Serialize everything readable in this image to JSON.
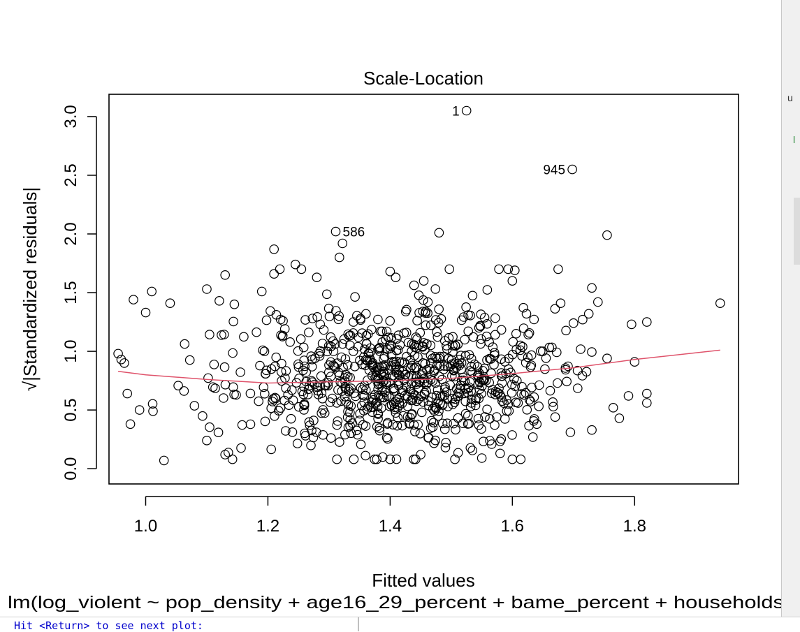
{
  "window": {
    "console_prompt": "Hit <Return> to see next plot:",
    "bg_fragment_1": "u",
    "bg_fragment_2": "l"
  },
  "chart_data": {
    "type": "scatter",
    "title": "Scale-Location",
    "xlabel": "Fitted values",
    "ylabel": "√|Standardized residuals|",
    "subtitle": "lm(log_violent ~ pop_density + age16_29_percent + bame_percent + households",
    "xlim": [
      0.94,
      1.97
    ],
    "ylim": [
      -0.13,
      3.19
    ],
    "x_ticks": [
      1.0,
      1.2,
      1.4,
      1.6,
      1.8
    ],
    "x_tick_labels": [
      "1.0",
      "1.2",
      "1.4",
      "1.6",
      "1.8"
    ],
    "y_ticks": [
      0.0,
      0.5,
      1.0,
      1.5,
      2.0,
      2.5,
      3.0
    ],
    "y_tick_labels": [
      "0.0",
      "0.5",
      "1.0",
      "1.5",
      "2.0",
      "2.5",
      "3.0"
    ],
    "grid": false,
    "point_color": "#000000",
    "smooth_color": "#df536b",
    "labeled_points": [
      {
        "label": "1",
        "x": 1.525,
        "y": 3.05
      },
      {
        "label": "945",
        "x": 1.698,
        "y": 2.55
      },
      {
        "label": "586",
        "x": 1.311,
        "y": 2.02
      }
    ],
    "outlier_points": [
      {
        "x": 1.322,
        "y": 1.92
      },
      {
        "x": 1.48,
        "y": 2.01
      },
      {
        "x": 1.755,
        "y": 1.99
      },
      {
        "x": 1.21,
        "y": 1.87
      },
      {
        "x": 1.317,
        "y": 1.8
      },
      {
        "x": 1.245,
        "y": 1.74
      },
      {
        "x": 1.675,
        "y": 1.7
      },
      {
        "x": 1.497,
        "y": 1.7
      },
      {
        "x": 1.604,
        "y": 1.69
      },
      {
        "x": 1.4,
        "y": 1.68
      },
      {
        "x": 1.13,
        "y": 1.65
      },
      {
        "x": 1.21,
        "y": 1.66
      },
      {
        "x": 1.28,
        "y": 1.63
      },
      {
        "x": 1.409,
        "y": 1.63
      },
      {
        "x": 1.6,
        "y": 1.6
      },
      {
        "x": 1.455,
        "y": 1.6
      },
      {
        "x": 1.94,
        "y": 1.41
      },
      {
        "x": 1.795,
        "y": 1.23
      },
      {
        "x": 1.82,
        "y": 1.25
      },
      {
        "x": 1.73,
        "y": 1.54
      },
      {
        "x": 1.74,
        "y": 1.42
      },
      {
        "x": 1.679,
        "y": 1.41
      },
      {
        "x": 1.0,
        "y": 1.33
      },
      {
        "x": 0.98,
        "y": 1.44
      },
      {
        "x": 1.01,
        "y": 1.51
      },
      {
        "x": 1.04,
        "y": 1.41
      },
      {
        "x": 1.1,
        "y": 1.53
      },
      {
        "x": 1.19,
        "y": 1.51
      },
      {
        "x": 1.03,
        "y": 0.07
      },
      {
        "x": 0.975,
        "y": 0.38
      },
      {
        "x": 1.6,
        "y": 0.08
      },
      {
        "x": 1.8,
        "y": 0.91
      },
      {
        "x": 1.82,
        "y": 0.64
      },
      {
        "x": 1.82,
        "y": 0.56
      },
      {
        "x": 1.765,
        "y": 0.52
      },
      {
        "x": 1.775,
        "y": 0.43
      },
      {
        "x": 1.79,
        "y": 0.62
      },
      {
        "x": 1.755,
        "y": 0.94
      },
      {
        "x": 1.73,
        "y": 0.33
      },
      {
        "x": 1.695,
        "y": 0.31
      },
      {
        "x": 1.7,
        "y": 1.24
      },
      {
        "x": 1.715,
        "y": 1.27
      },
      {
        "x": 1.725,
        "y": 1.32
      },
      {
        "x": 0.955,
        "y": 0.98
      },
      {
        "x": 0.96,
        "y": 0.93
      },
      {
        "x": 0.965,
        "y": 0.9
      },
      {
        "x": 0.97,
        "y": 0.64
      },
      {
        "x": 0.99,
        "y": 0.5
      },
      {
        "x": 1.012,
        "y": 0.49
      },
      {
        "x": 1.1,
        "y": 0.24
      },
      {
        "x": 1.13,
        "y": 0.12
      },
      {
        "x": 1.142,
        "y": 0.08
      },
      {
        "x": 1.45,
        "y": 0.12
      },
      {
        "x": 1.55,
        "y": 0.09
      },
      {
        "x": 1.58,
        "y": 0.13
      },
      {
        "x": 1.64,
        "y": 0.38
      },
      {
        "x": 1.67,
        "y": 0.44
      }
    ],
    "cloud": {
      "n": 800,
      "x_min": 0.96,
      "x_max": 1.73,
      "x_center": 1.42,
      "y_center": 0.78,
      "y_spread": 0.3,
      "y_min": 0.08,
      "y_max": 1.7
    },
    "smooth_line": {
      "x": [
        0.955,
        1.0,
        1.1,
        1.2,
        1.3,
        1.4,
        1.5,
        1.6,
        1.7,
        1.8,
        1.94
      ],
      "y": [
        0.83,
        0.8,
        0.76,
        0.73,
        0.74,
        0.75,
        0.77,
        0.81,
        0.86,
        0.93,
        1.01
      ]
    }
  }
}
